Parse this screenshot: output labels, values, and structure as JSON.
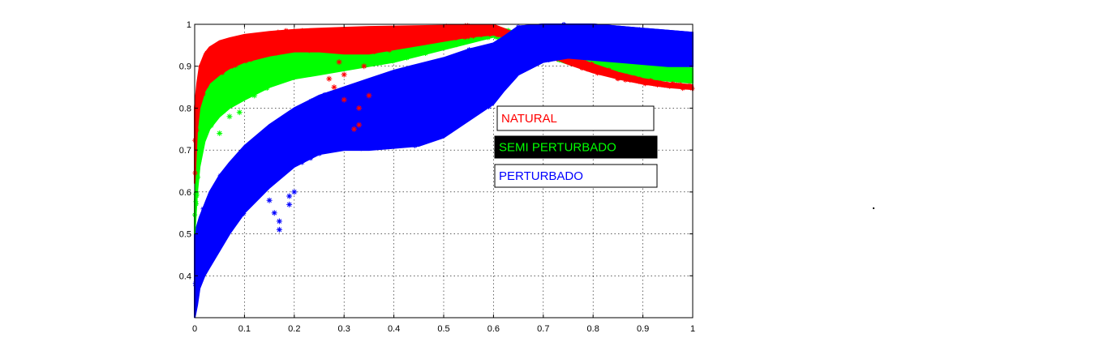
{
  "chart_data": {
    "type": "scatter",
    "marker": "asterisk",
    "xlim": [
      0,
      1
    ],
    "ylim": [
      0.3,
      1
    ],
    "x_ticks": [
      "0",
      "0.1",
      "0.2",
      "0.3",
      "0.4",
      "0.5",
      "0.6",
      "0.7",
      "0.8",
      "0.9",
      "1"
    ],
    "y_ticks": [
      "0.4",
      "0.5",
      "0.6",
      "0.7",
      "0.8",
      "0.9",
      "1"
    ],
    "grid": true,
    "legend_position": "center-right",
    "series": [
      {
        "name": "NATURAL",
        "color": "#ff0000",
        "x": [
          0.0,
          0.005,
          0.01,
          0.02,
          0.03,
          0.05,
          0.07,
          0.1,
          0.15,
          0.2,
          0.25,
          0.3,
          0.35,
          0.4,
          0.45,
          0.5,
          0.55,
          0.6,
          0.62,
          0.65,
          0.7,
          0.75,
          0.8,
          0.85,
          0.9,
          0.95,
          1.0
        ],
        "y_upper": [
          0.8,
          0.86,
          0.9,
          0.93,
          0.945,
          0.96,
          0.967,
          0.975,
          0.982,
          0.987,
          0.99,
          0.992,
          0.994,
          0.995,
          0.996,
          0.997,
          0.998,
          0.999,
          0.99,
          0.975,
          0.95,
          0.925,
          0.905,
          0.885,
          0.87,
          0.86,
          0.855
        ],
        "y_lower": [
          0.62,
          0.75,
          0.8,
          0.84,
          0.86,
          0.88,
          0.895,
          0.91,
          0.925,
          0.935,
          0.935,
          0.93,
          0.93,
          0.94,
          0.95,
          0.96,
          0.97,
          0.975,
          0.97,
          0.955,
          0.93,
          0.905,
          0.885,
          0.87,
          0.858,
          0.85,
          0.845
        ],
        "scatter_cloud": [
          [
            0.28,
            0.85
          ],
          [
            0.3,
            0.82
          ],
          [
            0.33,
            0.8
          ],
          [
            0.35,
            0.83
          ],
          [
            0.3,
            0.88
          ],
          [
            0.27,
            0.87
          ],
          [
            0.33,
            0.76
          ],
          [
            0.32,
            0.75
          ],
          [
            0.34,
            0.9
          ],
          [
            0.29,
            0.91
          ]
        ]
      },
      {
        "name": "SEMI PERTURBADO",
        "color": "#00ff00",
        "x": [
          0.0,
          0.005,
          0.01,
          0.02,
          0.03,
          0.05,
          0.07,
          0.1,
          0.15,
          0.2,
          0.25,
          0.3,
          0.35,
          0.4,
          0.45,
          0.5,
          0.55,
          0.6,
          0.62,
          0.65,
          0.7,
          0.75,
          0.8,
          0.85,
          0.9,
          0.95,
          1.0
        ],
        "y_upper": [
          0.58,
          0.72,
          0.79,
          0.84,
          0.87,
          0.9,
          0.915,
          0.93,
          0.945,
          0.955,
          0.96,
          0.965,
          0.97,
          0.975,
          0.98,
          0.985,
          0.99,
          0.998,
          0.99,
          0.98,
          0.965,
          0.95,
          0.935,
          0.92,
          0.91,
          0.9,
          0.895
        ],
        "y_lower": [
          0.5,
          0.6,
          0.66,
          0.72,
          0.75,
          0.78,
          0.8,
          0.82,
          0.85,
          0.87,
          0.88,
          0.89,
          0.9,
          0.91,
          0.925,
          0.94,
          0.955,
          0.97,
          0.96,
          0.945,
          0.925,
          0.905,
          0.89,
          0.875,
          0.87,
          0.865,
          0.86
        ],
        "scatter_cloud": [
          [
            0.07,
            0.78
          ],
          [
            0.09,
            0.79
          ],
          [
            0.05,
            0.74
          ],
          [
            0.12,
            0.83
          ],
          [
            0.15,
            0.88
          ]
        ]
      },
      {
        "name": "PERTURBADO",
        "color": "#0000ff",
        "x": [
          0.0,
          0.005,
          0.01,
          0.02,
          0.03,
          0.05,
          0.07,
          0.1,
          0.15,
          0.2,
          0.25,
          0.3,
          0.35,
          0.4,
          0.45,
          0.5,
          0.55,
          0.6,
          0.62,
          0.65,
          0.7,
          0.75,
          0.8,
          0.85,
          0.9,
          0.95,
          1.0
        ],
        "y_upper": [
          0.5,
          0.52,
          0.54,
          0.57,
          0.6,
          0.64,
          0.67,
          0.71,
          0.76,
          0.8,
          0.83,
          0.85,
          0.87,
          0.89,
          0.905,
          0.92,
          0.94,
          0.955,
          0.97,
          0.995,
          1.0,
          1.0,
          1.0,
          0.995,
          0.99,
          0.985,
          0.98
        ],
        "y_lower": [
          0.3,
          0.33,
          0.37,
          0.4,
          0.42,
          0.46,
          0.5,
          0.55,
          0.61,
          0.66,
          0.69,
          0.7,
          0.7,
          0.705,
          0.71,
          0.73,
          0.77,
          0.81,
          0.84,
          0.88,
          0.91,
          0.92,
          0.915,
          0.91,
          0.905,
          0.9,
          0.9
        ],
        "scatter_cloud": [
          [
            0.17,
            0.51
          ],
          [
            0.17,
            0.53
          ],
          [
            0.19,
            0.59
          ],
          [
            0.19,
            0.57
          ],
          [
            0.16,
            0.55
          ],
          [
            0.15,
            0.58
          ],
          [
            0.55,
            0.8
          ],
          [
            0.57,
            0.83
          ],
          [
            0.6,
            0.85
          ],
          [
            0.62,
            0.87
          ],
          [
            0.65,
            0.9
          ],
          [
            0.2,
            0.6
          ]
        ]
      }
    ]
  }
}
